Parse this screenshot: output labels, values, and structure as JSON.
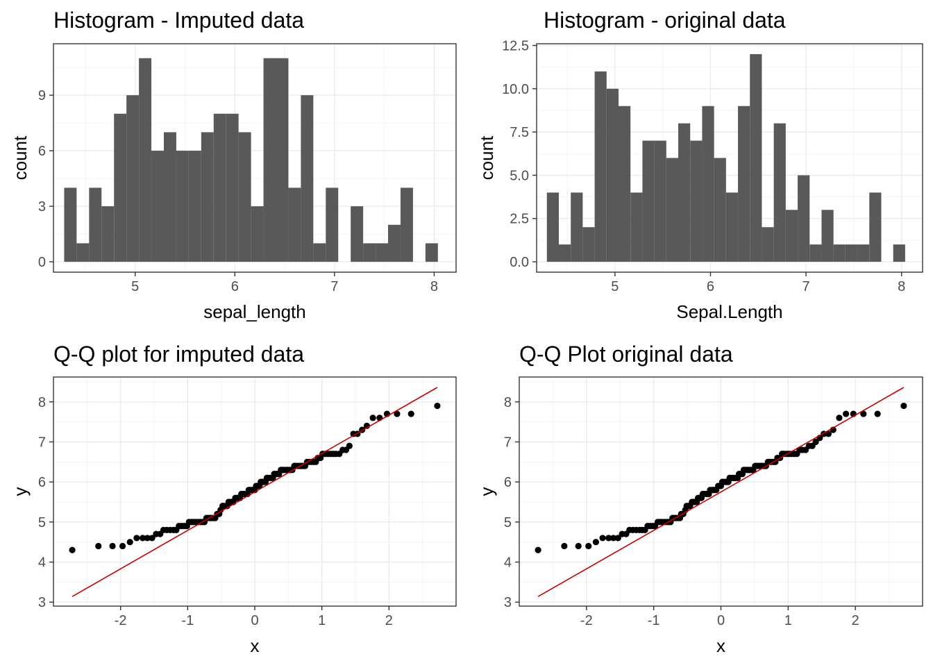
{
  "chart_data": [
    {
      "type": "bar",
      "subtype": "histogram",
      "title": "Histogram - Imputed data",
      "xlabel": "sepal_length",
      "ylabel": "count",
      "xlim": [
        4.18,
        8.22
      ],
      "ylim": [
        -0.56,
        11.78
      ],
      "xticks": [
        5,
        6,
        7,
        8
      ],
      "xtick_labels": [
        "5",
        "6",
        "7",
        "8"
      ],
      "yticks": [
        0,
        3,
        6,
        9
      ],
      "ytick_labels": [
        "0",
        "3",
        "6",
        "9"
      ],
      "grid": true,
      "bar_color": "#595959",
      "bin_start": 4.2875,
      "bin_width": 0.125,
      "counts": [
        4,
        1,
        4,
        3,
        8,
        9,
        11,
        6,
        7,
        6,
        6,
        7,
        8,
        8,
        7,
        3,
        11,
        11,
        4,
        9,
        1,
        4,
        0,
        3,
        1,
        1,
        2,
        4,
        0,
        1
      ]
    },
    {
      "type": "bar",
      "subtype": "histogram",
      "title": "Histogram - original data",
      "xlabel": "Sepal.Length",
      "ylabel": "count",
      "xlim": [
        4.18,
        8.22
      ],
      "ylim": [
        -0.6,
        12.6
      ],
      "xticks": [
        5,
        6,
        7,
        8
      ],
      "xtick_labels": [
        "5",
        "6",
        "7",
        "8"
      ],
      "yticks": [
        0,
        2.5,
        5,
        7.5,
        10,
        12.5
      ],
      "ytick_labels": [
        "0.0",
        "2.5",
        "5.0",
        "7.5",
        "10.0",
        "12.5"
      ],
      "grid": true,
      "bar_color": "#595959",
      "bin_start": 4.2875,
      "bin_width": 0.125,
      "counts": [
        4,
        1,
        4,
        2,
        11,
        10,
        9,
        4,
        7,
        7,
        6,
        8,
        7,
        9,
        6,
        4,
        9,
        12,
        2,
        8,
        3,
        5,
        1,
        3,
        1,
        1,
        1,
        4,
        0,
        1
      ]
    },
    {
      "type": "scatter",
      "subtype": "qq",
      "title": "Q-Q plot for imputed data",
      "xlabel": "x",
      "ylabel": "y",
      "xlim": [
        -3.0,
        3.0
      ],
      "ylim": [
        2.9,
        8.62
      ],
      "xticks": [
        -2,
        -1,
        0,
        1,
        2
      ],
      "xtick_labels": [
        "-2",
        "-1",
        "0",
        "1",
        "2"
      ],
      "yticks": [
        3,
        4,
        5,
        6,
        7,
        8
      ],
      "ytick_labels": [
        "3",
        "4",
        "5",
        "6",
        "7",
        "8"
      ],
      "grid": true,
      "point_color": "#000000",
      "line_color": "#cc0000",
      "reference_line": {
        "x": [
          -2.72,
          2.72
        ],
        "y": [
          3.14,
          8.36
        ]
      },
      "points": [
        [
          -2.72,
          4.3
        ],
        [
          -2.33,
          4.4
        ],
        [
          -2.12,
          4.4
        ],
        [
          -1.97,
          4.4
        ],
        [
          -1.86,
          4.5
        ],
        [
          -1.76,
          4.6
        ],
        [
          -1.67,
          4.6
        ],
        [
          -1.6,
          4.6
        ],
        [
          -1.53,
          4.6
        ],
        [
          -1.47,
          4.7
        ],
        [
          -1.41,
          4.7
        ],
        [
          -1.36,
          4.8
        ],
        [
          -1.31,
          4.8
        ],
        [
          -1.26,
          4.8
        ],
        [
          -1.21,
          4.8
        ],
        [
          -1.17,
          4.8
        ],
        [
          -1.13,
          4.9
        ],
        [
          -1.09,
          4.9
        ],
        [
          -1.05,
          4.9
        ],
        [
          -1.01,
          4.9
        ],
        [
          -0.98,
          5.0
        ],
        [
          -0.94,
          5.0
        ],
        [
          -0.91,
          5.0
        ],
        [
          -0.88,
          5.0
        ],
        [
          -0.84,
          5.0
        ],
        [
          -0.81,
          5.0
        ],
        [
          -0.78,
          5.0
        ],
        [
          -0.75,
          5.0
        ],
        [
          -0.72,
          5.1
        ],
        [
          -0.7,
          5.1
        ],
        [
          -0.67,
          5.1
        ],
        [
          -0.64,
          5.1
        ],
        [
          -0.61,
          5.1
        ],
        [
          -0.59,
          5.1
        ],
        [
          -0.56,
          5.2
        ],
        [
          -0.53,
          5.2
        ],
        [
          -0.51,
          5.3
        ],
        [
          -0.48,
          5.4
        ],
        [
          -0.46,
          5.4
        ],
        [
          -0.43,
          5.4
        ],
        [
          -0.41,
          5.4
        ],
        [
          -0.39,
          5.5
        ],
        [
          -0.36,
          5.5
        ],
        [
          -0.34,
          5.5
        ],
        [
          -0.32,
          5.5
        ],
        [
          -0.29,
          5.6
        ],
        [
          -0.27,
          5.6
        ],
        [
          -0.25,
          5.6
        ],
        [
          -0.22,
          5.6
        ],
        [
          -0.2,
          5.7
        ],
        [
          -0.18,
          5.7
        ],
        [
          -0.16,
          5.7
        ],
        [
          -0.13,
          5.7
        ],
        [
          -0.11,
          5.7
        ],
        [
          -0.09,
          5.8
        ],
        [
          -0.07,
          5.8
        ],
        [
          -0.04,
          5.8
        ],
        [
          -0.02,
          5.8
        ],
        [
          0.0,
          5.8
        ],
        [
          0.02,
          5.9
        ],
        [
          0.04,
          5.9
        ],
        [
          0.07,
          5.9
        ],
        [
          0.09,
          6.0
        ],
        [
          0.11,
          6.0
        ],
        [
          0.13,
          6.0
        ],
        [
          0.16,
          6.0
        ],
        [
          0.18,
          6.1
        ],
        [
          0.2,
          6.1
        ],
        [
          0.22,
          6.1
        ],
        [
          0.25,
          6.1
        ],
        [
          0.27,
          6.1
        ],
        [
          0.29,
          6.2
        ],
        [
          0.32,
          6.2
        ],
        [
          0.34,
          6.2
        ],
        [
          0.36,
          6.2
        ],
        [
          0.39,
          6.3
        ],
        [
          0.41,
          6.3
        ],
        [
          0.43,
          6.3
        ],
        [
          0.46,
          6.3
        ],
        [
          0.48,
          6.3
        ],
        [
          0.51,
          6.3
        ],
        [
          0.53,
          6.3
        ],
        [
          0.56,
          6.3
        ],
        [
          0.59,
          6.4
        ],
        [
          0.61,
          6.4
        ],
        [
          0.64,
          6.4
        ],
        [
          0.67,
          6.4
        ],
        [
          0.7,
          6.4
        ],
        [
          0.72,
          6.4
        ],
        [
          0.75,
          6.4
        ],
        [
          0.78,
          6.5
        ],
        [
          0.81,
          6.5
        ],
        [
          0.84,
          6.5
        ],
        [
          0.88,
          6.5
        ],
        [
          0.91,
          6.5
        ],
        [
          0.94,
          6.6
        ],
        [
          0.98,
          6.6
        ],
        [
          1.01,
          6.7
        ],
        [
          1.05,
          6.7
        ],
        [
          1.09,
          6.7
        ],
        [
          1.13,
          6.7
        ],
        [
          1.17,
          6.7
        ],
        [
          1.21,
          6.7
        ],
        [
          1.26,
          6.7
        ],
        [
          1.31,
          6.8
        ],
        [
          1.36,
          6.8
        ],
        [
          1.41,
          6.9
        ],
        [
          1.47,
          7.2
        ],
        [
          1.53,
          7.2
        ],
        [
          1.6,
          7.3
        ],
        [
          1.67,
          7.4
        ],
        [
          1.76,
          7.6
        ],
        [
          1.86,
          7.6
        ],
        [
          1.97,
          7.7
        ],
        [
          2.12,
          7.7
        ],
        [
          2.33,
          7.7
        ],
        [
          2.72,
          7.9
        ]
      ]
    },
    {
      "type": "scatter",
      "subtype": "qq",
      "title": "Q-Q Plot original data",
      "xlabel": "x",
      "ylabel": "y",
      "xlim": [
        -3.0,
        3.0
      ],
      "ylim": [
        2.9,
        8.62
      ],
      "xticks": [
        -2,
        -1,
        0,
        1,
        2
      ],
      "xtick_labels": [
        "-2",
        "-1",
        "0",
        "1",
        "2"
      ],
      "yticks": [
        3,
        4,
        5,
        6,
        7,
        8
      ],
      "ytick_labels": [
        "3",
        "4",
        "5",
        "6",
        "7",
        "8"
      ],
      "grid": true,
      "point_color": "#000000",
      "line_color": "#cc0000",
      "reference_line": {
        "x": [
          -2.72,
          2.72
        ],
        "y": [
          3.14,
          8.36
        ]
      },
      "points": [
        [
          -2.72,
          4.3
        ],
        [
          -2.33,
          4.4
        ],
        [
          -2.12,
          4.4
        ],
        [
          -1.97,
          4.4
        ],
        [
          -1.86,
          4.5
        ],
        [
          -1.76,
          4.6
        ],
        [
          -1.67,
          4.6
        ],
        [
          -1.6,
          4.6
        ],
        [
          -1.53,
          4.6
        ],
        [
          -1.47,
          4.7
        ],
        [
          -1.41,
          4.7
        ],
        [
          -1.36,
          4.8
        ],
        [
          -1.31,
          4.8
        ],
        [
          -1.26,
          4.8
        ],
        [
          -1.21,
          4.8
        ],
        [
          -1.17,
          4.8
        ],
        [
          -1.13,
          4.8
        ],
        [
          -1.09,
          4.9
        ],
        [
          -1.05,
          4.9
        ],
        [
          -1.01,
          4.9
        ],
        [
          -0.98,
          4.9
        ],
        [
          -0.94,
          5.0
        ],
        [
          -0.91,
          5.0
        ],
        [
          -0.88,
          5.0
        ],
        [
          -0.84,
          5.0
        ],
        [
          -0.81,
          5.0
        ],
        [
          -0.78,
          5.0
        ],
        [
          -0.75,
          5.0
        ],
        [
          -0.72,
          5.1
        ],
        [
          -0.7,
          5.1
        ],
        [
          -0.67,
          5.1
        ],
        [
          -0.64,
          5.1
        ],
        [
          -0.61,
          5.1
        ],
        [
          -0.59,
          5.2
        ],
        [
          -0.56,
          5.2
        ],
        [
          -0.53,
          5.3
        ],
        [
          -0.51,
          5.4
        ],
        [
          -0.48,
          5.4
        ],
        [
          -0.46,
          5.4
        ],
        [
          -0.43,
          5.5
        ],
        [
          -0.41,
          5.5
        ],
        [
          -0.39,
          5.5
        ],
        [
          -0.36,
          5.5
        ],
        [
          -0.34,
          5.6
        ],
        [
          -0.32,
          5.6
        ],
        [
          -0.29,
          5.6
        ],
        [
          -0.27,
          5.7
        ],
        [
          -0.25,
          5.7
        ],
        [
          -0.22,
          5.7
        ],
        [
          -0.2,
          5.7
        ],
        [
          -0.18,
          5.7
        ],
        [
          -0.16,
          5.8
        ],
        [
          -0.13,
          5.8
        ],
        [
          -0.11,
          5.8
        ],
        [
          -0.09,
          5.8
        ],
        [
          -0.07,
          5.8
        ],
        [
          -0.04,
          5.9
        ],
        [
          -0.02,
          5.9
        ],
        [
          0.0,
          5.9
        ],
        [
          0.02,
          6.0
        ],
        [
          0.04,
          6.0
        ],
        [
          0.07,
          6.0
        ],
        [
          0.09,
          6.0
        ],
        [
          0.11,
          6.0
        ],
        [
          0.13,
          6.1
        ],
        [
          0.16,
          6.1
        ],
        [
          0.18,
          6.1
        ],
        [
          0.2,
          6.1
        ],
        [
          0.22,
          6.1
        ],
        [
          0.25,
          6.1
        ],
        [
          0.27,
          6.2
        ],
        [
          0.29,
          6.2
        ],
        [
          0.32,
          6.2
        ],
        [
          0.34,
          6.3
        ],
        [
          0.36,
          6.3
        ],
        [
          0.39,
          6.3
        ],
        [
          0.41,
          6.3
        ],
        [
          0.43,
          6.3
        ],
        [
          0.46,
          6.3
        ],
        [
          0.48,
          6.3
        ],
        [
          0.51,
          6.4
        ],
        [
          0.53,
          6.4
        ],
        [
          0.56,
          6.4
        ],
        [
          0.59,
          6.4
        ],
        [
          0.61,
          6.4
        ],
        [
          0.64,
          6.4
        ],
        [
          0.67,
          6.4
        ],
        [
          0.7,
          6.5
        ],
        [
          0.72,
          6.5
        ],
        [
          0.75,
          6.5
        ],
        [
          0.78,
          6.5
        ],
        [
          0.81,
          6.5
        ],
        [
          0.84,
          6.6
        ],
        [
          0.88,
          6.6
        ],
        [
          0.91,
          6.7
        ],
        [
          0.94,
          6.7
        ],
        [
          0.98,
          6.7
        ],
        [
          1.01,
          6.7
        ],
        [
          1.05,
          6.7
        ],
        [
          1.09,
          6.7
        ],
        [
          1.13,
          6.7
        ],
        [
          1.17,
          6.8
        ],
        [
          1.21,
          6.8
        ],
        [
          1.26,
          6.8
        ],
        [
          1.31,
          6.9
        ],
        [
          1.36,
          6.9
        ],
        [
          1.41,
          7.0
        ],
        [
          1.47,
          7.1
        ],
        [
          1.53,
          7.2
        ],
        [
          1.6,
          7.2
        ],
        [
          1.67,
          7.3
        ],
        [
          1.76,
          7.6
        ],
        [
          1.86,
          7.7
        ],
        [
          1.97,
          7.7
        ],
        [
          2.12,
          7.7
        ],
        [
          2.33,
          7.7
        ],
        [
          2.72,
          7.9
        ]
      ]
    }
  ]
}
